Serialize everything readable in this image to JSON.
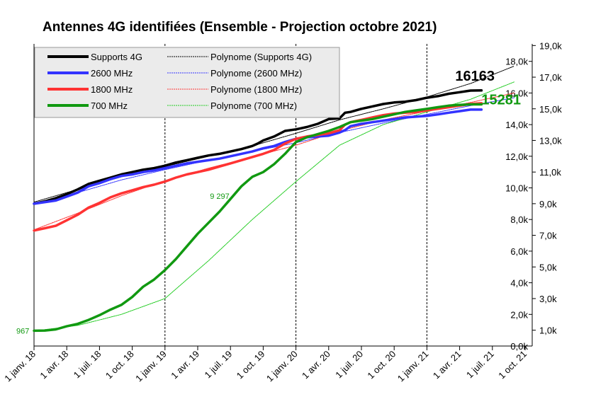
{
  "chart_data": {
    "type": "line",
    "title": "Antennes 4G identifiées (Ensemble - Projection octobre 2021)",
    "x_ticks": [
      "1 janv. 18",
      "1 avr. 18",
      "1 juil. 18",
      "1 oct. 18",
      "1 janv. 19",
      "1 avr. 19",
      "1 juil. 19",
      "1 oct. 19",
      "1 janv. 20",
      "1 avr. 20",
      "1 juil. 20",
      "1 oct. 20",
      "1 janv. 21",
      "1 avr. 21",
      "1 juil. 21",
      "1 oct. 21"
    ],
    "y_ticks_inner": [
      "0,0k",
      "2,0k",
      "4,0k",
      "6,0k",
      "8,0k",
      "10,0k",
      "12,0k",
      "14,0k",
      "16,0k",
      "18,0k"
    ],
    "y_ticks_outer": [
      "1,0k",
      "3,0k",
      "5,0k",
      "7,0k",
      "9,0k",
      "11,0k",
      "13,0k",
      "15,0k",
      "17,0k",
      "19,0k"
    ],
    "ylim": [
      0,
      19000
    ],
    "x_unit": "months since 1 janv. 18",
    "series": [
      {
        "name": "Supports 4G",
        "color": "#000000",
        "x": [
          0,
          1,
          2,
          3,
          4,
          5,
          6,
          7,
          8,
          9,
          10,
          11,
          12,
          13,
          14,
          15,
          16,
          17,
          18,
          19,
          20,
          20.5,
          21,
          22,
          23,
          24,
          25,
          26,
          27,
          28,
          28.5,
          29,
          30,
          31,
          32,
          33,
          34,
          35,
          36,
          37,
          38,
          39,
          40,
          41
        ],
        "y": [
          9000,
          9150,
          9350,
          9600,
          9900,
          10250,
          10450,
          10650,
          10850,
          11000,
          11150,
          11250,
          11400,
          11600,
          11750,
          11900,
          12050,
          12150,
          12300,
          12450,
          12650,
          12800,
          13000,
          13250,
          13600,
          13700,
          13850,
          14050,
          14350,
          14400,
          14750,
          14800,
          15000,
          15150,
          15300,
          15400,
          15450,
          15550,
          15700,
          15800,
          15950,
          16050,
          16150,
          16163
        ]
      },
      {
        "name": "2600 MHz",
        "color": "#3333ff",
        "x": [
          0,
          1,
          2,
          3,
          4,
          5,
          6,
          7,
          8,
          9,
          10,
          11,
          12,
          13,
          14,
          15,
          16,
          17,
          18,
          19,
          20,
          21,
          22,
          23,
          24,
          25,
          26,
          27,
          28,
          28.5,
          29,
          30,
          31,
          32,
          33,
          34,
          35,
          36,
          37,
          38,
          39,
          40,
          41
        ],
        "y": [
          9000,
          9100,
          9200,
          9450,
          9700,
          10100,
          10300,
          10550,
          10750,
          10850,
          11000,
          11100,
          11250,
          11400,
          11550,
          11650,
          11750,
          11850,
          12000,
          12150,
          12300,
          12500,
          12650,
          12900,
          13100,
          13200,
          13250,
          13300,
          13500,
          13650,
          13900,
          14050,
          14150,
          14250,
          14350,
          14450,
          14500,
          14550,
          14650,
          14750,
          14850,
          14950,
          14950
        ]
      },
      {
        "name": "1800 MHz",
        "color": "#ff3333",
        "x": [
          0,
          1,
          2,
          3,
          4,
          5,
          6,
          7,
          8,
          9,
          10,
          11,
          12,
          13,
          14,
          15,
          16,
          17,
          18,
          19,
          20,
          21,
          22,
          23,
          24,
          25,
          26,
          27,
          28,
          28.5,
          29,
          30,
          31,
          32,
          33,
          34,
          35,
          36,
          37,
          38,
          39,
          40,
          41
        ],
        "y": [
          7300,
          7450,
          7600,
          7950,
          8300,
          8750,
          9050,
          9400,
          9650,
          9850,
          10050,
          10200,
          10400,
          10650,
          10850,
          11000,
          11150,
          11350,
          11550,
          11750,
          11950,
          12150,
          12400,
          12800,
          13100,
          13250,
          13350,
          13450,
          13650,
          14000,
          14150,
          14300,
          14450,
          14600,
          14700,
          14750,
          14800,
          14900,
          15000,
          15100,
          15200,
          15300,
          15350
        ]
      },
      {
        "name": "700 MHz",
        "color": "#119911",
        "x": [
          0,
          1,
          2,
          3,
          4,
          5,
          6,
          7,
          8,
          9,
          10,
          11,
          12,
          13,
          14,
          15,
          16,
          17,
          18,
          19,
          20,
          21,
          22,
          23,
          24,
          25,
          26,
          27,
          28,
          28.5,
          29,
          30,
          31,
          32,
          33,
          34,
          35,
          36,
          37,
          38,
          39,
          40,
          41
        ],
        "y": [
          967,
          980,
          1050,
          1250,
          1400,
          1650,
          1950,
          2300,
          2600,
          3100,
          3750,
          4200,
          4800,
          5500,
          6300,
          7100,
          7800,
          8500,
          9297,
          10100,
          10700,
          11000,
          11500,
          12150,
          12900,
          13200,
          13400,
          13600,
          13850,
          14000,
          14150,
          14250,
          14350,
          14500,
          14650,
          14800,
          14900,
          15000,
          15100,
          15200,
          15250,
          15281,
          15281
        ]
      },
      {
        "name": "Polynome (Supports 4G)",
        "color": "#000000",
        "trend": true,
        "x": [
          0,
          4,
          8,
          12,
          16,
          20,
          24,
          28,
          32,
          36,
          40,
          44
        ],
        "y": [
          9100,
          9900,
          10700,
          11350,
          12000,
          12650,
          13450,
          14300,
          15000,
          15750,
          16600,
          17700
        ]
      },
      {
        "name": "Polynome (2600 MHz)",
        "color": "#3333ff",
        "trend": true,
        "x": [
          0,
          4,
          8,
          12,
          16,
          20,
          24,
          28,
          32,
          36,
          40,
          44
        ],
        "y": [
          9000,
          9700,
          10500,
          11150,
          11750,
          12300,
          12850,
          13500,
          14100,
          14650,
          15200,
          15700
        ]
      },
      {
        "name": "Polynome (1800 MHz)",
        "color": "#ff3333",
        "trend": true,
        "x": [
          0,
          4,
          8,
          12,
          16,
          20,
          24,
          28,
          32,
          36,
          40,
          44
        ],
        "y": [
          7350,
          8400,
          9500,
          10450,
          11250,
          11950,
          12700,
          13600,
          14300,
          14850,
          15400,
          16000
        ]
      },
      {
        "name": "Polynome (700 MHz)",
        "color": "#22cc22",
        "trend": true,
        "x": [
          0,
          4,
          8,
          12,
          16,
          20,
          24,
          28,
          32,
          36,
          40,
          44
        ],
        "y": [
          950,
          1300,
          2000,
          3000,
          5400,
          8000,
          10400,
          12700,
          14000,
          14800,
          15600,
          16700
        ]
      }
    ],
    "vlines_x": [
      12,
      24,
      36
    ],
    "annotations": [
      {
        "text": "16163",
        "x": 41,
        "y": 16163,
        "color": "#000000",
        "series": "Supports 4G"
      },
      {
        "text": "15281",
        "x": 41,
        "y": 15281,
        "color": "#119911",
        "series": "700 MHz"
      },
      {
        "text": "9 297",
        "x": 18,
        "y": 9297,
        "color": "#119911",
        "series": "700 MHz"
      },
      {
        "text": "967",
        "x": 0,
        "y": 967,
        "color": "#119911",
        "series": "700 MHz"
      }
    ],
    "legend_position": "top-left",
    "grid": false
  }
}
